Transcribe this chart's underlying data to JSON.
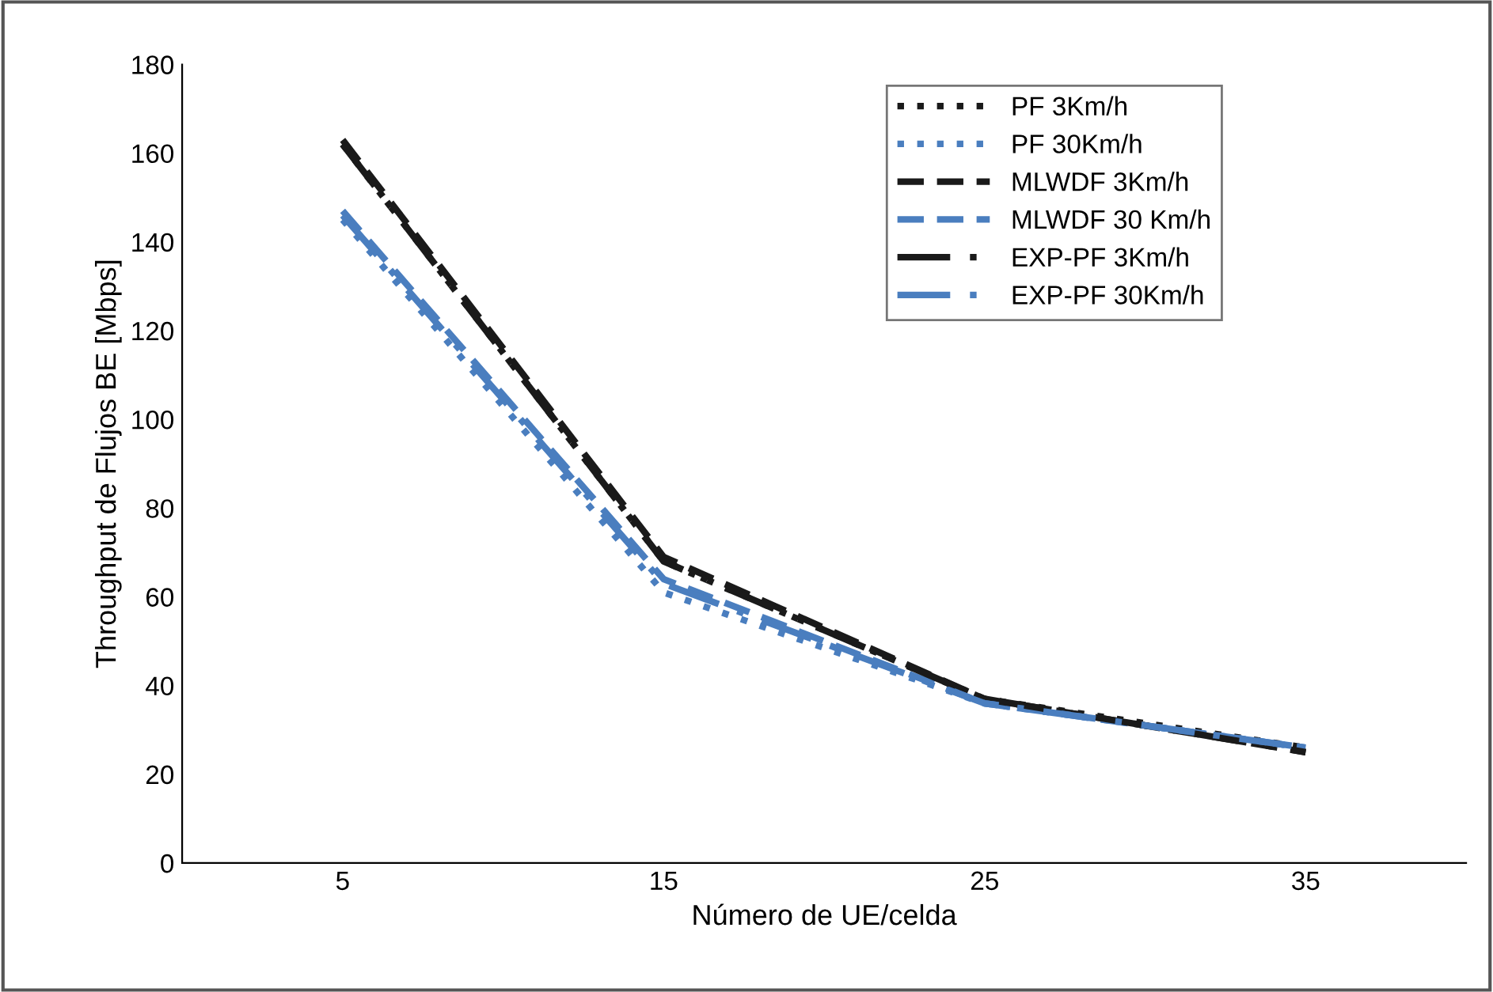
{
  "chart_data": {
    "type": "line",
    "xlabel": "Número de UE/celda",
    "ylabel": "Throughput de Flujos BE [Mbps]",
    "x": [
      5,
      15,
      25,
      35
    ],
    "xlim": [
      0,
      40
    ],
    "xticks": [
      5,
      15,
      25,
      35
    ],
    "ylim": [
      0,
      180
    ],
    "yticks": [
      0,
      20,
      40,
      60,
      80,
      100,
      120,
      140,
      160,
      180
    ],
    "grid": false,
    "legend": "top right",
    "series": [
      {
        "name": "PF 3Km/h",
        "color": "#1a1a1a",
        "line_style": "dotted",
        "values": [
          162,
          68,
          37,
          26
        ]
      },
      {
        "name": "PF 30Km/h",
        "color": "#4a7ebf",
        "line_style": "dotted",
        "values": [
          145,
          61,
          36,
          26
        ]
      },
      {
        "name": "MLWDF 3Km/h",
        "color": "#1a1a1a",
        "line_style": "dashed",
        "values": [
          163,
          69,
          37,
          25
        ]
      },
      {
        "name": "MLWDF 30 Km/h",
        "color": "#4a7ebf",
        "line_style": "dashed",
        "values": [
          147,
          64,
          36,
          26
        ]
      },
      {
        "name": "EXP-PF 3Km/h",
        "color": "#1a1a1a",
        "line_style": "dashdot",
        "values": [
          162,
          68,
          37,
          25
        ]
      },
      {
        "name": "EXP-PF 30Km/h",
        "color": "#4a7ebf",
        "line_style": "dashdot",
        "values": [
          146,
          63,
          36,
          26
        ]
      }
    ]
  }
}
